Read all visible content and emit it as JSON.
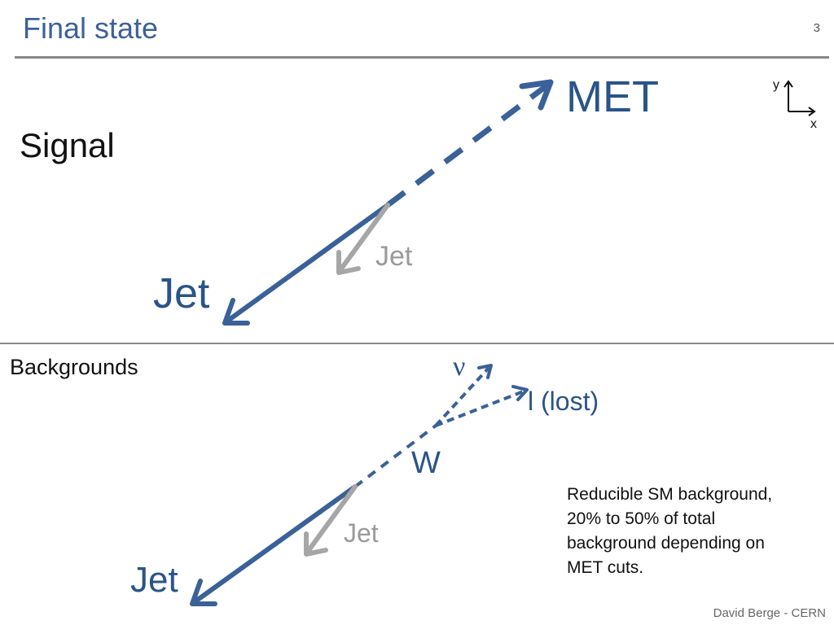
{
  "slide": {
    "title": "Final state",
    "page_number": "3",
    "footer": "David Berge - CERN"
  },
  "signal_section": {
    "heading": "Signal",
    "met_label": "MET",
    "jet_main_label": "Jet",
    "jet_secondary_label": "Jet"
  },
  "background_section": {
    "heading": "Backgrounds",
    "neutrino_label": "ν",
    "lepton_label": "l (lost)",
    "w_label": "W",
    "jet_secondary_label": "Jet",
    "jet_main_label": "Jet",
    "note_lines": [
      "Reducible SM background,",
      "20% to 50% of total",
      "background depending on",
      "MET cuts."
    ]
  },
  "axes": {
    "x_label": "x",
    "y_label": "y"
  },
  "colors": {
    "title": "#3d6198",
    "arrow_blue": "#3a6198",
    "arrow_gray": "#a6a6a6",
    "label_blue": "#2a5489",
    "label_gray": "#9a9a9a",
    "rule": "#888888"
  }
}
